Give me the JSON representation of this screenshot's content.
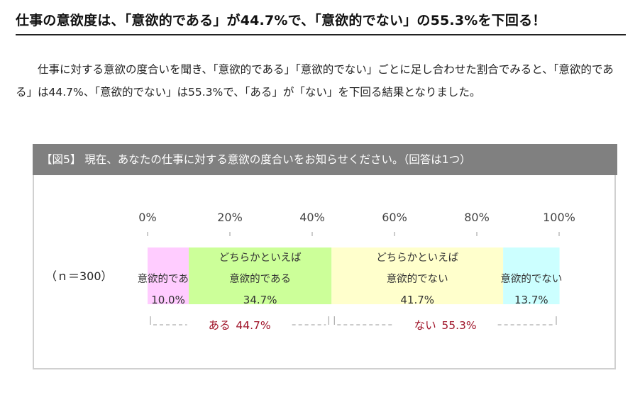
{
  "headline": "仕事の意欲度は、「意欲的である」が44.7%で、「意欲的でない」の55.3%を下回る！",
  "body_text": "仕事に対する意欲の度合いを聞き、「意欲的である」「意欲的でない」ごとに足し合わせた割合でみると、「意欲的である」は44.7%、「意欲的でない」は55.3%で、「ある」が「ない」を下回る結果となりました。",
  "figure_title": "【図5】 現在、あなたの仕事に対する意欲の度合いをお知らせください。（回答は1つ）",
  "chart_data": {
    "type": "bar",
    "orientation": "horizontal-stacked-100",
    "xlim": [
      0,
      100
    ],
    "ticks": [
      "0%",
      "20%",
      "40%",
      "60%",
      "80%",
      "100%"
    ],
    "row_label": "（ｎ＝300）",
    "series": [
      {
        "label_lines": [
          "意欲的である"
        ],
        "value": 10.0,
        "value_label": "10.0%",
        "color": "#ffccff"
      },
      {
        "label_lines": [
          "どちらかといえば",
          "意欲的である"
        ],
        "value": 34.7,
        "value_label": "34.7%",
        "color": "#ccff99"
      },
      {
        "label_lines": [
          "どちらかといえば",
          "意欲的でない"
        ],
        "value": 41.7,
        "value_label": "41.7%",
        "color": "#ffffcc"
      },
      {
        "label_lines": [
          "意欲的でない"
        ],
        "value": 13.7,
        "value_label": "13.7%",
        "color": "#ccffff"
      }
    ],
    "groups": [
      {
        "label": "ある",
        "value_label": "44.7%",
        "from": 0,
        "to": 44.7
      },
      {
        "label": "ない",
        "value_label": "55.3%",
        "from": 44.7,
        "to": 100
      }
    ],
    "group_label_color": "#a0152a"
  }
}
